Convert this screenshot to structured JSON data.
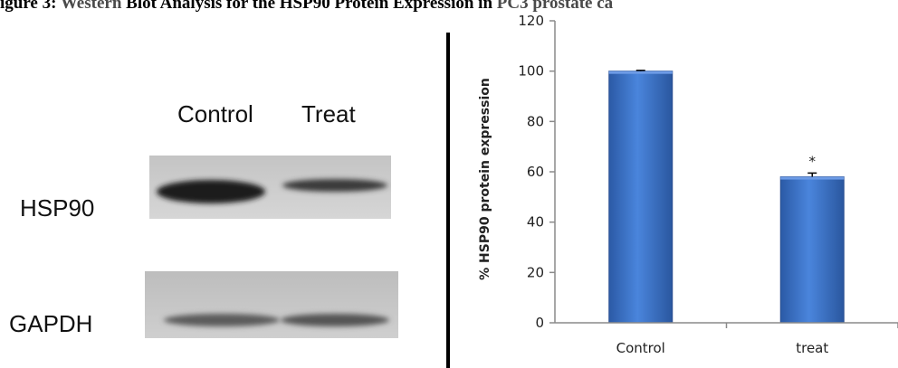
{
  "figure": {
    "title_prefix": "igure 3: ",
    "title_accent_1": "Western",
    "title_middle": " Blot Analysis for the HSP90 Protein Expression in ",
    "title_accent_2": "PC3 prostate ca"
  },
  "blot": {
    "lane_labels": [
      "Control",
      "Treat"
    ],
    "row_labels": [
      "HSP90",
      "GAPDH"
    ]
  },
  "colors": {
    "bar_fill": "#3b6fc4",
    "bar_edge": "#2a4f91",
    "axis": "#8a8a8a",
    "blot_bg": "#c9c9c9"
  },
  "chart_data": {
    "type": "bar",
    "title": "",
    "xlabel": "",
    "ylabel": "% HSP90 protein expression",
    "categories": [
      "Control",
      "treat"
    ],
    "values": [
      100,
      58
    ],
    "error": [
      0.3,
      1.5
    ],
    "annotations": [
      "",
      "*"
    ],
    "ylim": [
      0,
      120
    ],
    "yticks": [
      0,
      20,
      40,
      60,
      80,
      100,
      120
    ],
    "grid": false,
    "legend": "none"
  }
}
